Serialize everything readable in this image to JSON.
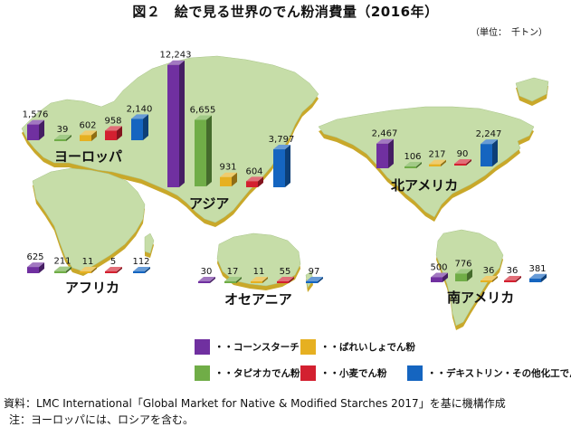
{
  "title": "図２　絵で見る世界のでん粉消費量（2016年）",
  "unit": "（単位：　千トン）",
  "colors": {
    "corn": "#7030A0",
    "tapioca": "#70AD47",
    "potato": "#E6B021",
    "wheat": "#D32030",
    "dextrin": "#1565C0",
    "land": "#C6DDA8",
    "landEdge": "#C9A82A"
  },
  "chart_data": {
    "type": "bar",
    "title": "図２　絵で見る世界のでん粉消費量（2016年）",
    "unit": "千トン",
    "categories": [
      "ヨーロッパ",
      "アジア",
      "北アメリカ",
      "アフリカ",
      "オセアニア",
      "南アメリカ"
    ],
    "series": [
      {
        "name": "コーンスターチ",
        "values": [
          1576,
          12243,
          2467,
          625,
          30,
          500
        ]
      },
      {
        "name": "タピオカでん粉",
        "values": [
          39,
          6655,
          106,
          211,
          17,
          776
        ]
      },
      {
        "name": "ばれいしょでん粉",
        "values": [
          602,
          931,
          217,
          11,
          11,
          36
        ]
      },
      {
        "name": "小麦でん粉",
        "values": [
          958,
          604,
          90,
          5,
          55,
          36
        ]
      },
      {
        "name": "デキストリン・その他化工でん粉",
        "values": [
          2140,
          3797,
          2247,
          112,
          97,
          381
        ]
      }
    ],
    "value_labels": [
      [
        "1,576",
        "39",
        "602",
        "958",
        "2,140"
      ],
      [
        "12,243",
        "6,655",
        "931",
        "604",
        "3,797"
      ],
      [
        "2,467",
        "106",
        "217",
        "90",
        "2,247"
      ],
      [
        "625",
        "211",
        "11",
        "5",
        "112"
      ],
      [
        "30",
        "17",
        "11",
        "55",
        "97"
      ],
      [
        "500",
        "776",
        "36",
        "36",
        "381"
      ]
    ],
    "legend_placement": "bottom-right",
    "grid": false
  },
  "legend": [
    "・・コーンスターチ",
    "・・ばれいしょでん粉",
    "・・タピオカでん粉",
    "・・小麦でん粉",
    "・・デキストリン・その他化工でん粉"
  ],
  "notes": [
    "資料：LMC International「Global Market for Native & Modified Starches 2017」を基に機構作成",
    "注：ヨーロッパには、ロシアを含む。"
  ]
}
